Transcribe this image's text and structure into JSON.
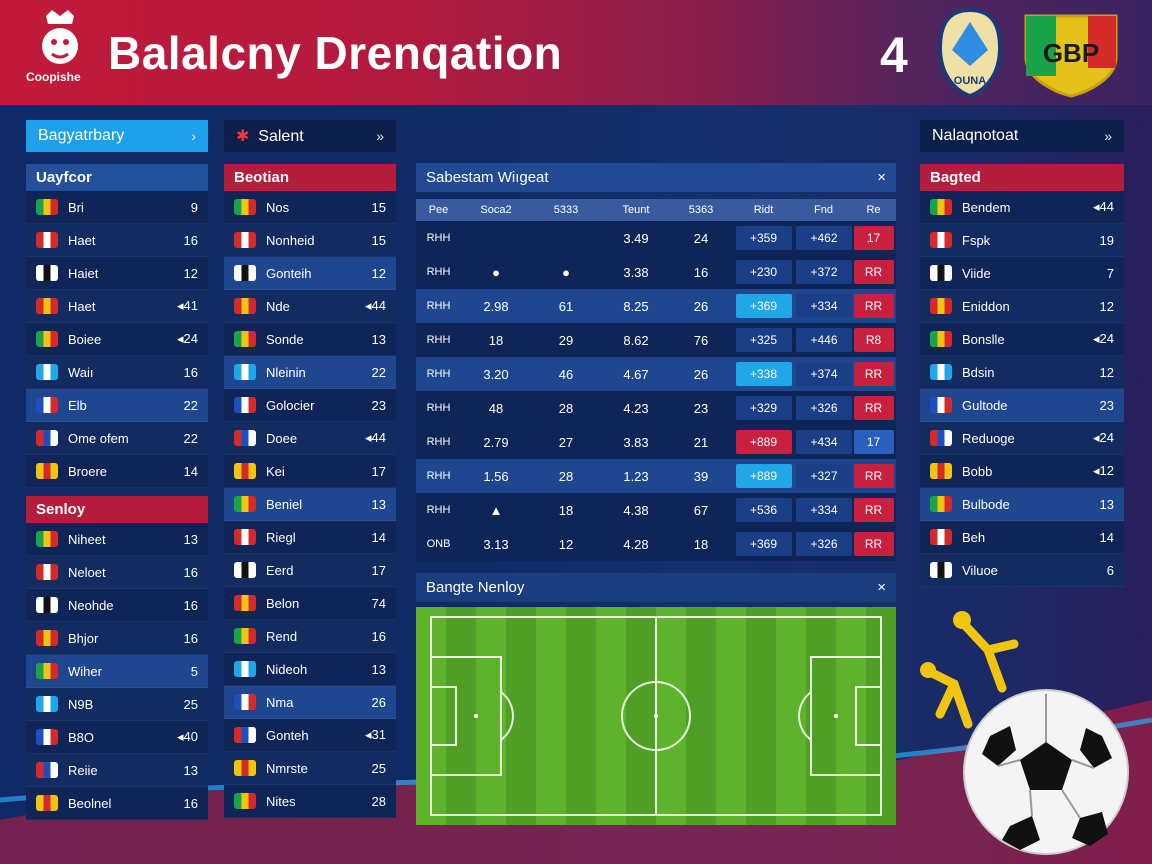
{
  "header": {
    "logo_text": "Coopishe",
    "title": "Balalcny Drenqation",
    "score": "4",
    "crest1_text": "OUNA",
    "crest2_text": "GBP"
  },
  "left": {
    "button": "Bagyatrbary",
    "section1": "Uayfcor",
    "rows1": [
      {
        "name": "Bri",
        "val": "9"
      },
      {
        "name": "Haet",
        "val": "16"
      },
      {
        "name": "Haiet",
        "val": "12"
      },
      {
        "name": "Haet",
        "val": "◂41"
      },
      {
        "name": "Boiee",
        "val": "◂24"
      },
      {
        "name": "Waiı",
        "val": "16"
      },
      {
        "name": "Elb",
        "val": "22"
      },
      {
        "name": "Ome ofem",
        "val": "22"
      },
      {
        "name": "Broere",
        "val": "14"
      }
    ],
    "section2": "Senloy",
    "rows2": [
      {
        "name": "Niheet",
        "val": "13"
      },
      {
        "name": "Neloet",
        "val": "16"
      },
      {
        "name": "Neohde",
        "val": "16"
      },
      {
        "name": "Bhjor",
        "val": "16"
      },
      {
        "name": "Wiher",
        "val": "5"
      },
      {
        "name": "N9B",
        "val": "25"
      },
      {
        "name": "B8O",
        "val": "◂40"
      },
      {
        "name": "Reiie",
        "val": "13"
      },
      {
        "name": "Beolnel",
        "val": "16"
      }
    ]
  },
  "col2": {
    "button": "Salent",
    "section": "Beotian",
    "rows": [
      {
        "name": "Nos",
        "val": "15"
      },
      {
        "name": "Nonheid",
        "val": "15"
      },
      {
        "name": "Gonteih",
        "val": "12"
      },
      {
        "name": "Nde",
        "val": "◂44"
      },
      {
        "name": "Sonde",
        "val": "13"
      },
      {
        "name": "Nleinin",
        "val": "22"
      },
      {
        "name": "Golocier",
        "val": "23"
      },
      {
        "name": "Doee",
        "val": "◂44"
      },
      {
        "name": "Kei",
        "val": "17"
      },
      {
        "name": "Beniel",
        "val": "13"
      },
      {
        "name": "Riegl",
        "val": "14"
      },
      {
        "name": "Eerd",
        "val": "17"
      },
      {
        "name": "Belon",
        "val": "74"
      },
      {
        "name": "Rend",
        "val": "16"
      },
      {
        "name": "Nideoh",
        "val": "13"
      },
      {
        "name": "Nma",
        "val": "26"
      },
      {
        "name": "Gonteh",
        "val": "◂31"
      },
      {
        "name": "Nmrste",
        "val": "25"
      },
      {
        "name": "Nites",
        "val": "28"
      }
    ]
  },
  "table": {
    "title": "Sabestam Wiıgeat",
    "columns": [
      "Pee",
      "Soca2",
      "5333",
      "Teunt",
      "5363",
      "Ridt",
      "Fnd",
      "Re"
    ],
    "rows": [
      [
        "RHH",
        "",
        "",
        "3.49",
        "24",
        "+359",
        "+462",
        "17"
      ],
      [
        "RHH",
        "●",
        "●",
        "3.38",
        "16",
        "+230",
        "+372",
        "RR"
      ],
      [
        "RHH",
        "2.98",
        "61",
        "8.25",
        "26",
        "+369",
        "+334",
        "RR"
      ],
      [
        "RHH",
        "18",
        "29",
        "8.62",
        "76",
        "+325",
        "+446",
        "R8"
      ],
      [
        "RHH",
        "3.20",
        "46",
        "4.67",
        "26",
        "+338",
        "+374",
        "RR"
      ],
      [
        "RHH",
        "48",
        "28",
        "4.23",
        "23",
        "+329",
        "+326",
        "RR"
      ],
      [
        "RHH",
        "2.79",
        "27",
        "3.83",
        "21",
        "+889",
        "+434",
        "17"
      ],
      [
        "RHH",
        "1.56",
        "28",
        "1.23",
        "39",
        "+889",
        "+327",
        "RR"
      ],
      [
        "RHH",
        "▲",
        "18",
        "4.38",
        "67",
        "+536",
        "+334",
        "RR"
      ],
      [
        "ONB",
        "3.13",
        "12",
        "4.28",
        "18",
        "+369",
        "+326",
        "RR"
      ]
    ]
  },
  "pitch": {
    "title": "Bangte Nenloy"
  },
  "right": {
    "button": "Nalaqnotoat",
    "section": "Bagted",
    "rows": [
      {
        "name": "Bendem",
        "val": "◂44"
      },
      {
        "name": "Fspk",
        "val": "19"
      },
      {
        "name": "Viide",
        "val": "7"
      },
      {
        "name": "Eniddon",
        "val": "12"
      },
      {
        "name": "Bonslle",
        "val": "◂24"
      },
      {
        "name": "Bdsin",
        "val": "12"
      },
      {
        "name": "Gultode",
        "val": "23"
      },
      {
        "name": "Reduoge",
        "val": "◂24"
      },
      {
        "name": "Bobb",
        "val": "◂12"
      },
      {
        "name": "Bulbode",
        "val": "13"
      },
      {
        "name": "Beh",
        "val": "14"
      },
      {
        "name": "Viluoe",
        "val": "6"
      }
    ]
  },
  "colors": {
    "accent_cyan": "#20a7e8",
    "red": "#c8203e",
    "blue_pill": "#2a5fbd"
  }
}
